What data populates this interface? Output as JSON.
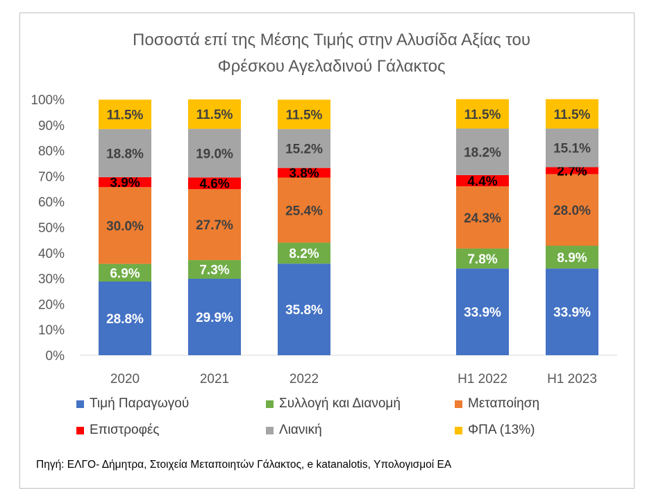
{
  "chart_data": {
    "type": "bar",
    "stacked": true,
    "percent_stacked": true,
    "title_lines": [
      "Ποσοστά επί της Μέσης Τιμής στην Αλυσίδα Αξίας του",
      "Φρέσκου Αγελαδινού Γάλακτος"
    ],
    "categories": [
      "2020",
      "2021",
      "2022",
      "",
      "H1 2022",
      "H1 2023"
    ],
    "ylim": [
      0,
      100
    ],
    "ytick_labels": [
      "0%",
      "10%",
      "20%",
      "30%",
      "40%",
      "50%",
      "60%",
      "70%",
      "80%",
      "90%",
      "100%"
    ],
    "grid": false,
    "legend_position": "bottom",
    "series": [
      {
        "name": "Τιμή Παραγωγού",
        "color": "#4472C4",
        "label_color": "#ffffff",
        "values": [
          28.8,
          29.9,
          35.8,
          null,
          33.9,
          33.9
        ],
        "labels": [
          "28.8%",
          "29.9%",
          "35.8%",
          "",
          "33.9%",
          "33.9%"
        ]
      },
      {
        "name": "Συλλογή και Διανομή",
        "color": "#70AD47",
        "label_color": "#ffffff",
        "values": [
          6.9,
          7.3,
          8.2,
          null,
          7.8,
          8.9
        ],
        "labels": [
          "6.9%",
          "7.3%",
          "8.2%",
          "",
          "7.8%",
          "8.9%"
        ]
      },
      {
        "name": "Μεταποίηση",
        "color": "#ED7D31",
        "label_color": "#404040",
        "values": [
          30.0,
          27.7,
          25.4,
          null,
          24.3,
          28.0
        ],
        "labels": [
          "30.0%",
          "27.7%",
          "25.4%",
          "",
          "24.3%",
          "28.0%"
        ]
      },
      {
        "name": "Επιστροφές",
        "color": "#FF0000",
        "label_color": "#000000",
        "values": [
          3.9,
          4.6,
          3.8,
          null,
          4.4,
          2.7
        ],
        "labels": [
          "3.9%",
          "4.6%",
          "3.8%",
          "",
          "4.4%",
          "2.7%"
        ]
      },
      {
        "name": "Λιανική",
        "color": "#A5A5A5",
        "label_color": "#404040",
        "values": [
          18.8,
          19.0,
          15.2,
          null,
          18.2,
          15.1
        ],
        "labels": [
          "18.8%",
          "19.0%",
          "15.2%",
          "",
          "18.2%",
          "15.1%"
        ]
      },
      {
        "name": "ΦΠΑ (13%)",
        "color": "#FFC000",
        "label_color": "#404040",
        "values": [
          11.5,
          11.5,
          11.5,
          null,
          11.5,
          11.5
        ],
        "labels": [
          "11.5%",
          "11.5%",
          "11.5%",
          "",
          "11.5%",
          "11.5%"
        ]
      }
    ]
  },
  "source": "Πηγή: ΕΛΓΟ- Δήμητρα, Στοιχεία Μεταποιητών Γάλακτος, e katanalotis, Υπολογισμοί ΕΑ"
}
